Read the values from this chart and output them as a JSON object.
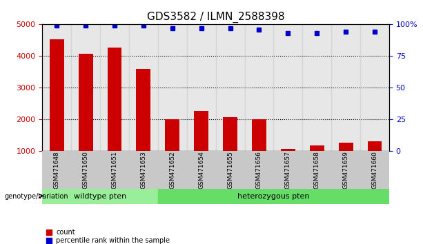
{
  "title": "GDS3582 / ILMN_2588398",
  "categories": [
    "GSM471648",
    "GSM471650",
    "GSM471651",
    "GSM471653",
    "GSM471652",
    "GSM471654",
    "GSM471655",
    "GSM471656",
    "GSM471657",
    "GSM471658",
    "GSM471659",
    "GSM471660"
  ],
  "bar_values": [
    4520,
    4080,
    4280,
    3600,
    2000,
    2280,
    2080,
    2020,
    1080,
    1180,
    1280,
    1320
  ],
  "percentile_values": [
    99,
    99,
    99,
    99,
    97,
    97,
    97,
    96,
    93,
    93,
    94,
    94
  ],
  "bar_color": "#cc0000",
  "dot_color": "#0000cc",
  "ylim_left": [
    1000,
    5000
  ],
  "ylim_right": [
    0,
    100
  ],
  "yticks_left": [
    1000,
    2000,
    3000,
    4000,
    5000
  ],
  "yticks_right": [
    0,
    25,
    50,
    75,
    100
  ],
  "yticklabels_right": [
    "0",
    "25",
    "50",
    "75",
    "100%"
  ],
  "wildtype_indices": [
    0,
    1,
    2,
    3
  ],
  "heterozygous_indices": [
    4,
    5,
    6,
    7,
    8,
    9,
    10,
    11
  ],
  "wildtype_label": "wildtype pten",
  "heterozygous_label": "heterozygous pten",
  "wildtype_color": "#99ee99",
  "heterozygous_color": "#66dd66",
  "genotype_label": "genotype/variation",
  "legend_count": "count",
  "legend_percentile": "percentile rank within the sample",
  "bg_color": "#f0f0f0",
  "grid_color": "#000000",
  "title_fontsize": 11,
  "tick_fontsize": 8,
  "bar_width": 0.5
}
